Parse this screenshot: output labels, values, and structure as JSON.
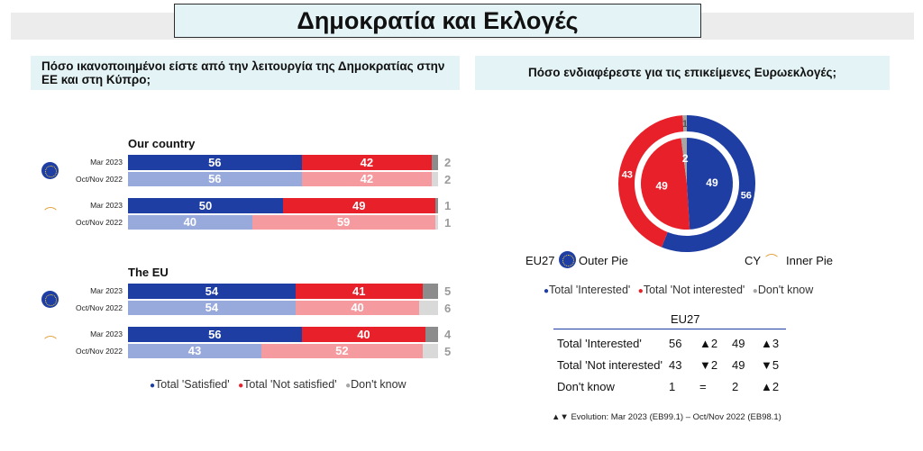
{
  "title": "Δημοκρατία και Εκλογές",
  "left": {
    "question": "Πόσο ικανοποιημένοι είστε από την λειτουργία της Δημοκρατίας στην ΕΕ και στη Κύπρο;",
    "colors": {
      "satisfied_dark": "#1f3ea3",
      "satisfied_light": "#98a9dc",
      "not_dark": "#e8202a",
      "not_light": "#f59a9e",
      "dk_dark": "#8c8c8c",
      "dk_light": "#d9d9d9"
    },
    "sections": [
      {
        "label": "Our country",
        "groups": [
          {
            "icon": "eu-flag-icon",
            "rows": [
              {
                "period": "Mar 2023",
                "satisfied": 56,
                "not_satisfied": 42,
                "dont_know": 2,
                "style": "dark"
              },
              {
                "period": "Oct/Nov 2022",
                "satisfied": 56,
                "not_satisfied": 42,
                "dont_know": 2,
                "style": "light"
              }
            ]
          },
          {
            "icon": "cyprus-map-icon",
            "rows": [
              {
                "period": "Mar 2023",
                "satisfied": 50,
                "not_satisfied": 49,
                "dont_know": 1,
                "style": "dark"
              },
              {
                "period": "Oct/Nov 2022",
                "satisfied": 40,
                "not_satisfied": 59,
                "dont_know": 1,
                "style": "light"
              }
            ]
          }
        ]
      },
      {
        "label": "The EU",
        "groups": [
          {
            "icon": "eu-flag-icon",
            "rows": [
              {
                "period": "Mar 2023",
                "satisfied": 54,
                "not_satisfied": 41,
                "dont_know": 5,
                "style": "dark"
              },
              {
                "period": "Oct/Nov 2022",
                "satisfied": 54,
                "not_satisfied": 40,
                "dont_know": 6,
                "style": "light"
              }
            ]
          },
          {
            "icon": "cyprus-map-icon",
            "rows": [
              {
                "period": "Mar 2023",
                "satisfied": 56,
                "not_satisfied": 40,
                "dont_know": 4,
                "style": "dark"
              },
              {
                "period": "Oct/Nov 2022",
                "satisfied": 43,
                "not_satisfied": 52,
                "dont_know": 5,
                "style": "light"
              }
            ]
          }
        ]
      }
    ],
    "legend": [
      "Total 'Satisfied'",
      "Total 'Not satisfied'",
      "Don't know"
    ]
  },
  "right": {
    "question": "Πόσο ενδιαφέρεστε για τις επικείμενες Ευρωεκλογές;",
    "colors": {
      "interested": "#1f3ea3",
      "not_interested": "#e8202a",
      "dont_know": "#a6a6a6"
    },
    "outer_label": "EU27",
    "outer_caption": "Outer Pie",
    "inner_label": "CY",
    "inner_caption": "Inner Pie",
    "legend": [
      "Total 'Interested'",
      "Total 'Not interested'",
      "Don't know"
    ],
    "table": {
      "header": "EU27",
      "rows": [
        {
          "label": "Total 'Interested'",
          "eu": "56",
          "eu_change": "▲2",
          "cy": "49",
          "cy_change": "▲3"
        },
        {
          "label": "Total 'Not interested'",
          "eu": "43",
          "eu_change": "▼2",
          "cy": "49",
          "cy_change": "▼5"
        },
        {
          "label": "Don't know",
          "eu": "1",
          "eu_change": "=",
          "cy": "2",
          "cy_change": "▲2"
        }
      ]
    },
    "footnote": "▲▼ Evolution: Mar 2023 (EB99.1) – Oct/Nov 2022 (EB98.1)"
  },
  "chart_data": [
    {
      "type": "bar",
      "orientation": "horizontal-stacked",
      "categories": [
        "Our country / EU27 / Mar 2023",
        "Our country / EU27 / Oct/Nov 2022",
        "Our country / CY / Mar 2023",
        "Our country / CY / Oct/Nov 2022",
        "The EU / EU27 / Mar 2023",
        "The EU / EU27 / Oct/Nov 2022",
        "The EU / CY / Mar 2023",
        "The EU / CY / Oct/Nov 2022"
      ],
      "series": [
        {
          "name": "Total 'Satisfied'",
          "values": [
            56,
            56,
            50,
            40,
            54,
            54,
            56,
            43
          ]
        },
        {
          "name": "Total 'Not satisfied'",
          "values": [
            42,
            42,
            49,
            59,
            41,
            40,
            40,
            52
          ]
        },
        {
          "name": "Don't know",
          "values": [
            2,
            2,
            1,
            1,
            5,
            6,
            4,
            5
          ]
        }
      ],
      "xlim": [
        0,
        100
      ]
    },
    {
      "type": "pie",
      "subtype": "double-donut",
      "pies": [
        {
          "name": "EU27",
          "ring": "outer",
          "labels": [
            "Total 'Interested'",
            "Total 'Not interested'",
            "Don't know"
          ],
          "values": [
            56,
            43,
            1
          ]
        },
        {
          "name": "CY",
          "ring": "inner",
          "labels": [
            "Total 'Interested'",
            "Total 'Not interested'",
            "Don't know"
          ],
          "values": [
            49,
            49,
            2
          ]
        }
      ]
    }
  ]
}
